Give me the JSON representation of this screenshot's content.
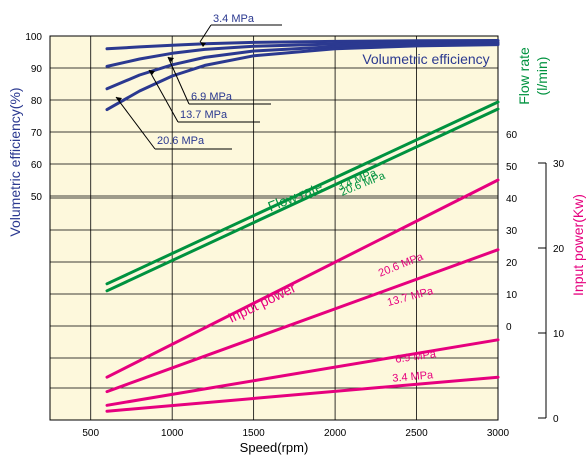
{
  "chart_data": {
    "type": "line",
    "x_axis": {
      "label": "Speed(rpm)",
      "range": [
        250,
        3000
      ],
      "ticks": [
        500,
        1000,
        1500,
        2000,
        2500,
        3000
      ]
    },
    "axes": {
      "vol_eff": {
        "label": "Volumetric efficiency(%)",
        "ticks": [
          50,
          60,
          70,
          80,
          90,
          100
        ],
        "color": "#2b3990"
      },
      "flow": {
        "label_line1": "Flow rate",
        "label_line2": "(l/min)",
        "ticks": [
          0,
          10,
          20,
          30,
          40,
          50,
          60
        ],
        "color": "#00923f"
      },
      "power": {
        "label": "Input power(Kw)",
        "ticks": [
          0,
          10,
          20,
          30
        ],
        "color": "#e6007e"
      }
    },
    "groups": [
      {
        "id": "vol_eff",
        "title": "Volumetric efficiency",
        "axis": "vol_eff",
        "color": "#2b3990",
        "series": [
          {
            "name": "3.4 MPa",
            "x": [
              600,
              800,
              1000,
              1200,
              1500,
              2000,
              2500,
              3000
            ],
            "y": [
              96.0,
              96.6,
              97.1,
              97.6,
              98.0,
              98.3,
              98.5,
              98.6
            ]
          },
          {
            "name": "6.9 MPa",
            "x": [
              600,
              800,
              1000,
              1200,
              1500,
              2000,
              2500,
              3000
            ],
            "y": [
              90.5,
              92.8,
              94.6,
              95.8,
              96.8,
              97.5,
              97.9,
              98.0
            ]
          },
          {
            "name": "13.7 MPa",
            "x": [
              600,
              800,
              1000,
              1200,
              1500,
              2000,
              2500,
              3000
            ],
            "y": [
              83.5,
              87.8,
              91.0,
              93.3,
              95.3,
              96.7,
              97.3,
              97.6
            ]
          },
          {
            "name": "20.6 MPa",
            "x": [
              600,
              800,
              1000,
              1200,
              1500,
              2000,
              2500,
              3000
            ],
            "y": [
              77.0,
              82.8,
              87.5,
              90.8,
              93.8,
              96.0,
              96.9,
              97.3
            ]
          }
        ]
      },
      {
        "id": "flow",
        "title": "Flow rate",
        "axis": "flow",
        "color": "#00923f",
        "series": [
          {
            "name": "3.4 MPa",
            "x": [
              600,
              3000
            ],
            "y": [
              13.2,
              70.0
            ]
          },
          {
            "name": "20.6 MPa",
            "x": [
              600,
              3000
            ],
            "y": [
              11.0,
              67.8
            ]
          }
        ]
      },
      {
        "id": "power",
        "title": "Input power",
        "axis": "power",
        "color": "#e6007e",
        "series": [
          {
            "name": "20.6 MPa",
            "x": [
              600,
              3000
            ],
            "y": [
              4.8,
              28.0
            ]
          },
          {
            "name": "13.7 MPa",
            "x": [
              600,
              3000
            ],
            "y": [
              3.1,
              19.8
            ]
          },
          {
            "name": "6.9 MPa",
            "x": [
              600,
              3000
            ],
            "y": [
              1.5,
              9.2
            ]
          },
          {
            "name": "3.4 MPa",
            "x": [
              600,
              3000
            ],
            "y": [
              0.8,
              4.8
            ]
          }
        ]
      }
    ],
    "annotations": [
      {
        "text": "3.4 MPa",
        "color": "#2b3990"
      },
      {
        "text": "6.9 MPa",
        "color": "#2b3990"
      },
      {
        "text": "13.7 MPa",
        "color": "#2b3990"
      },
      {
        "text": "20.6 MPa",
        "color": "#2b3990"
      },
      {
        "text": "3.4 MPa",
        "color": "#00923f"
      },
      {
        "text": "20.6 MPa",
        "color": "#00923f"
      },
      {
        "text": "20.6 MPa",
        "color": "#e6007e"
      },
      {
        "text": "13.7 MPa",
        "color": "#e6007e"
      },
      {
        "text": "6.9 MPa",
        "color": "#e6007e"
      },
      {
        "text": "3.4 MPa",
        "color": "#e6007e"
      }
    ],
    "plot_background": "#fdf8dc",
    "grid": true
  }
}
